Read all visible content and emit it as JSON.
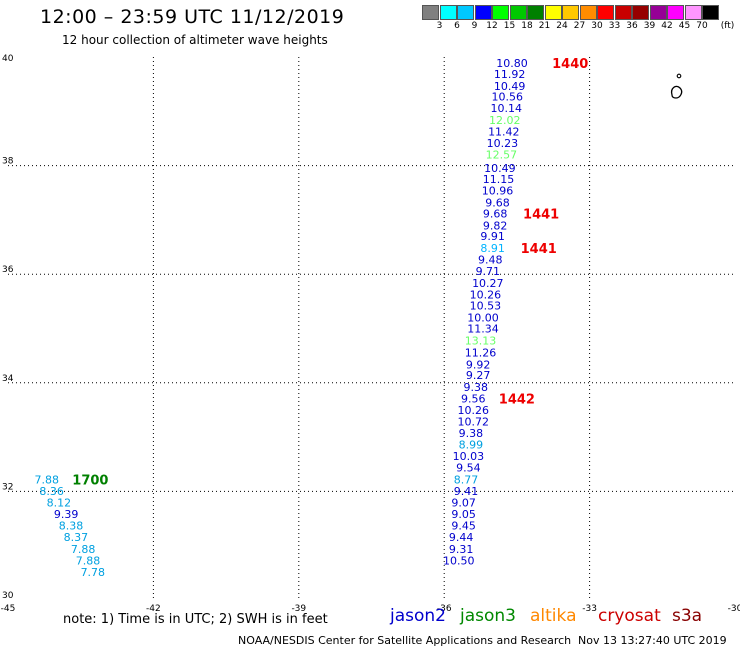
{
  "header": {
    "title": "12:00 – 23:59 UTC 11/12/2019",
    "subtitle": "12 hour collection of altimeter wave heights"
  },
  "legend": {
    "colors": [
      "#808080",
      "#00ffff",
      "#00c8ff",
      "#0000ff",
      "#00ff00",
      "#00c800",
      "#008000",
      "#ffff00",
      "#ffc800",
      "#ff8c00",
      "#ff0000",
      "#c80000",
      "#960000",
      "#960096",
      "#ff00ff",
      "#ff96ff",
      "#000000"
    ],
    "labels": [
      "3",
      "6",
      "9",
      "12",
      "15",
      "18",
      "21",
      "24",
      "27",
      "30",
      "33",
      "36",
      "39",
      "42",
      "45",
      "70",
      "(ft)"
    ]
  },
  "footer": {
    "note": "note:  1) Time is in UTC;  2) SWH is in feet",
    "credit": "NOAA/NESDIS Center for Satellite Applications and Research",
    "timestamp": "Nov 13 13:27:40 UTC 2019",
    "satellites": [
      {
        "name": "jason2",
        "color": "#0000cc"
      },
      {
        "name": "jason3",
        "color": "#008800"
      },
      {
        "name": "altika",
        "color": "#ff8800"
      },
      {
        "name": "cryosat",
        "color": "#cc0000"
      },
      {
        "name": "s3a",
        "color": "#880000"
      }
    ]
  },
  "chart_data": {
    "type": "scatter",
    "xlim": [
      -45,
      -30
    ],
    "ylim": [
      30,
      40
    ],
    "x_ticks": [
      "-45",
      "-42",
      "-39",
      "-36",
      "-33",
      "-30"
    ],
    "y_ticks": [
      "40",
      "38",
      "36",
      "34",
      "32",
      "30"
    ],
    "grid": true,
    "colors": {
      "blue": "#0000cc",
      "cyan": "#00b4ff",
      "green": "#66ff66",
      "tealblue": "#00a0e0"
    },
    "series": [
      {
        "points": [
          {
            "lon": -34.6,
            "lat": 39.89,
            "label": "10.80",
            "c": "blue"
          },
          {
            "lon": -34.65,
            "lat": 39.69,
            "label": "11.92",
            "c": "blue"
          },
          {
            "lon": -34.65,
            "lat": 39.47,
            "label": "10.49",
            "c": "blue"
          },
          {
            "lon": -34.7,
            "lat": 39.27,
            "label": "10.56",
            "c": "blue"
          },
          {
            "lon": -34.72,
            "lat": 39.06,
            "label": "10.14",
            "c": "blue"
          },
          {
            "lon": -34.75,
            "lat": 38.84,
            "label": "12.02",
            "c": "green"
          },
          {
            "lon": -34.77,
            "lat": 38.63,
            "label": "11.42",
            "c": "blue"
          },
          {
            "lon": -34.8,
            "lat": 38.42,
            "label": "10.23",
            "c": "blue"
          },
          {
            "lon": -34.82,
            "lat": 38.2,
            "label": "12.57",
            "c": "green"
          },
          {
            "lon": -34.85,
            "lat": 37.96,
            "label": "10.49",
            "c": "blue"
          },
          {
            "lon": -34.88,
            "lat": 37.75,
            "label": "11.15",
            "c": "blue"
          },
          {
            "lon": -34.9,
            "lat": 37.54,
            "label": "10.96",
            "c": "blue"
          },
          {
            "lon": -34.9,
            "lat": 37.32,
            "label": "9.68",
            "c": "blue"
          },
          {
            "lon": -34.95,
            "lat": 37.12,
            "label": "9.68",
            "c": "blue"
          },
          {
            "lon": -34.95,
            "lat": 36.9,
            "label": "9.82",
            "c": "blue"
          },
          {
            "lon": -35.0,
            "lat": 36.7,
            "label": "9.91",
            "c": "blue"
          },
          {
            "lon": -35.0,
            "lat": 36.48,
            "label": "8.91",
            "c": "cyan"
          },
          {
            "lon": -35.05,
            "lat": 36.27,
            "label": "9.48",
            "c": "blue"
          },
          {
            "lon": -35.1,
            "lat": 36.06,
            "label": "9.71",
            "c": "blue"
          },
          {
            "lon": -35.1,
            "lat": 35.84,
            "label": "10.27",
            "c": "blue"
          },
          {
            "lon": -35.15,
            "lat": 35.63,
            "label": "10.26",
            "c": "blue"
          },
          {
            "lon": -35.15,
            "lat": 35.42,
            "label": "10.53",
            "c": "blue"
          },
          {
            "lon": -35.2,
            "lat": 35.2,
            "label": "10.00",
            "c": "blue"
          },
          {
            "lon": -35.2,
            "lat": 35.0,
            "label": "11.34",
            "c": "blue"
          },
          {
            "lon": -35.25,
            "lat": 34.78,
            "label": "13.13",
            "c": "green"
          },
          {
            "lon": -35.25,
            "lat": 34.56,
            "label": "11.26",
            "c": "blue"
          },
          {
            "lon": -35.3,
            "lat": 34.34,
            "label": "9.92",
            "c": "blue"
          },
          {
            "lon": -35.3,
            "lat": 34.14,
            "label": "9.27",
            "c": "blue"
          },
          {
            "lon": -35.35,
            "lat": 33.92,
            "label": "9.38",
            "c": "blue"
          },
          {
            "lon": -35.4,
            "lat": 33.71,
            "label": "9.56",
            "c": "blue"
          },
          {
            "lon": -35.4,
            "lat": 33.5,
            "label": "10.26",
            "c": "blue"
          },
          {
            "lon": -35.4,
            "lat": 33.29,
            "label": "10.72",
            "c": "blue"
          },
          {
            "lon": -35.45,
            "lat": 33.08,
            "label": "9.38",
            "c": "blue"
          },
          {
            "lon": -35.45,
            "lat": 32.86,
            "label": "8.99",
            "c": "tealblue"
          },
          {
            "lon": -35.5,
            "lat": 32.65,
            "label": "10.03",
            "c": "blue"
          },
          {
            "lon": -35.5,
            "lat": 32.44,
            "label": "9.54",
            "c": "blue"
          },
          {
            "lon": -35.55,
            "lat": 32.22,
            "label": "8.77",
            "c": "tealblue"
          },
          {
            "lon": -35.55,
            "lat": 32.01,
            "label": "9.41",
            "c": "blue"
          },
          {
            "lon": -35.6,
            "lat": 31.8,
            "label": "9.07",
            "c": "blue"
          },
          {
            "lon": -35.6,
            "lat": 31.58,
            "label": "9.05",
            "c": "blue"
          },
          {
            "lon": -35.6,
            "lat": 31.37,
            "label": "9.45",
            "c": "blue"
          },
          {
            "lon": -35.65,
            "lat": 31.16,
            "label": "9.44",
            "c": "blue"
          },
          {
            "lon": -35.65,
            "lat": 30.94,
            "label": "9.31",
            "c": "blue"
          },
          {
            "lon": -35.7,
            "lat": 30.73,
            "label": "10.50",
            "c": "blue"
          }
        ]
      },
      {
        "points": [
          {
            "lon": -44.2,
            "lat": 32.22,
            "label": "7.88",
            "c": "tealblue"
          },
          {
            "lon": -44.1,
            "lat": 32.01,
            "label": "8.36",
            "c": "tealblue"
          },
          {
            "lon": -43.95,
            "lat": 31.8,
            "label": "8.12",
            "c": "tealblue"
          },
          {
            "lon": -43.8,
            "lat": 31.58,
            "label": "9.39",
            "c": "blue"
          },
          {
            "lon": -43.7,
            "lat": 31.37,
            "label": "8.38",
            "c": "tealblue"
          },
          {
            "lon": -43.6,
            "lat": 31.16,
            "label": "8.37",
            "c": "tealblue"
          },
          {
            "lon": -43.45,
            "lat": 30.94,
            "label": "7.88",
            "c": "tealblue"
          },
          {
            "lon": -43.35,
            "lat": 30.73,
            "label": "7.88",
            "c": "tealblue"
          },
          {
            "lon": -43.25,
            "lat": 30.52,
            "label": "7.78",
            "c": "tealblue"
          }
        ]
      }
    ],
    "time_labels": [
      {
        "lon": -33.4,
        "lat": 39.89,
        "label": "1440",
        "color": "#ee0000"
      },
      {
        "lon": -34.0,
        "lat": 37.12,
        "label": "1441",
        "color": "#ee0000"
      },
      {
        "lon": -34.05,
        "lat": 36.48,
        "label": "1441",
        "color": "#ee0000"
      },
      {
        "lon": -34.5,
        "lat": 33.71,
        "label": "1442",
        "color": "#ee0000"
      },
      {
        "lon": -43.3,
        "lat": 32.22,
        "label": "1700",
        "color": "#008000"
      }
    ]
  }
}
